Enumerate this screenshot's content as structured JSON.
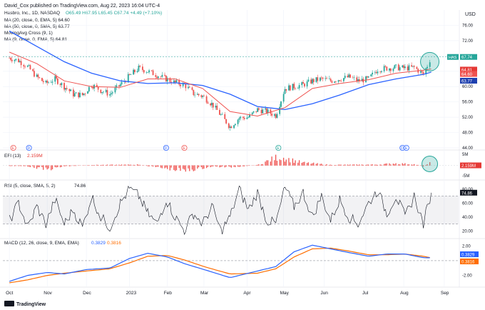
{
  "header": {
    "publisher": "David_Cox published on TradingView.com, Aug 22, 2023 16:04 UTC-4",
    "currency": "USD",
    "logo_text": "TradingView"
  },
  "chart_data": [
    {
      "type": "candlestick",
      "panel": "price",
      "title": "Hasbro, Inc., 1D, NASDAQ",
      "ohlc_text": "O65.49 H67.95 L65.45 C67.74 +4.49 (+7.10%)",
      "indicators_legend": [
        "MA (20, close, 0, EMA, 5) 64.60",
        "MA (50, close, 0, SMA, 5) 63.77",
        "MovingAvg Cross (9, 1)",
        "MA (9, close, 0, EMA, 5) 64.81"
      ],
      "ylim": [
        44,
        80
      ],
      "yticks": [
        "76.00",
        "72.00",
        "68.00",
        "64.00",
        "60.00",
        "56.00",
        "52.00",
        "48.00",
        "44.00"
      ],
      "price_labels": [
        {
          "text": "HAS",
          "color": "#26a69a"
        },
        {
          "text": "67.74",
          "color": "#26a69a"
        },
        {
          "text": "64.81",
          "color": "#e53935"
        },
        {
          "text": "64.60",
          "color": "#ef5350"
        },
        {
          "text": "63.77",
          "color": "#1e40af"
        }
      ],
      "last_price": 67.74,
      "colors": {
        "up": "#26a69a",
        "down": "#ef5350",
        "ema20": "#ef5350",
        "sma50": "#2962ff",
        "ema9": "#e53935"
      },
      "events": [
        {
          "date": "2022-10-06",
          "marker": "E",
          "color": "#ef5350"
        },
        {
          "date": "2022-10-18",
          "marker": "D",
          "color": "#2962ff"
        },
        {
          "date": "2023-01-31",
          "marker": "D",
          "color": "#2962ff"
        },
        {
          "date": "2023-02-14",
          "marker": "E",
          "color": "#ef5350"
        },
        {
          "date": "2023-04-27",
          "marker": "E",
          "color": "#26a69a"
        },
        {
          "date": "2023-07-31",
          "marker": "D",
          "color": "#2962ff"
        },
        {
          "date": "2023-08-03",
          "marker": "E",
          "color": "#2962ff"
        }
      ],
      "series": [
        {
          "name": "HAS close",
          "points": [
            [
              "2022-10-03",
              67.5
            ],
            [
              "2022-10-10",
              66.8
            ],
            [
              "2022-10-17",
              65.2
            ],
            [
              "2022-10-24",
              62.5
            ],
            [
              "2022-10-31",
              60.8
            ],
            [
              "2022-11-07",
              62.0
            ],
            [
              "2022-11-14",
              60.0
            ],
            [
              "2022-11-21",
              58.0
            ],
            [
              "2022-11-28",
              57.8
            ],
            [
              "2022-12-05",
              60.5
            ],
            [
              "2022-12-12",
              59.0
            ],
            [
              "2022-12-19",
              58.0
            ],
            [
              "2022-12-27",
              60.5
            ],
            [
              "2023-01-03",
              62.8
            ],
            [
              "2023-01-10",
              64.8
            ],
            [
              "2023-01-17",
              64.0
            ],
            [
              "2023-01-24",
              63.0
            ],
            [
              "2023-01-31",
              62.0
            ],
            [
              "2023-02-07",
              61.0
            ],
            [
              "2023-02-14",
              60.5
            ],
            [
              "2023-02-21",
              58.2
            ],
            [
              "2023-02-28",
              57.5
            ],
            [
              "2023-03-07",
              55.5
            ],
            [
              "2023-03-14",
              52.5
            ],
            [
              "2023-03-21",
              49.5
            ],
            [
              "2023-03-28",
              51.8
            ],
            [
              "2023-04-04",
              52.0
            ],
            [
              "2023-04-11",
              54.0
            ],
            [
              "2023-04-18",
              53.5
            ],
            [
              "2023-04-25",
              52.5
            ],
            [
              "2023-05-02",
              59.5
            ],
            [
              "2023-05-09",
              60.0
            ],
            [
              "2023-05-16",
              60.5
            ],
            [
              "2023-05-23",
              61.5
            ],
            [
              "2023-05-30",
              62.0
            ],
            [
              "2023-06-06",
              61.5
            ],
            [
              "2023-06-13",
              62.0
            ],
            [
              "2023-06-20",
              62.5
            ],
            [
              "2023-06-27",
              61.5
            ],
            [
              "2023-07-05",
              62.0
            ],
            [
              "2023-07-12",
              64.5
            ],
            [
              "2023-07-19",
              64.8
            ],
            [
              "2023-07-26",
              65.0
            ],
            [
              "2023-08-02",
              64.8
            ],
            [
              "2023-08-09",
              65.0
            ],
            [
              "2023-08-16",
              63.2
            ],
            [
              "2023-08-22",
              67.74
            ]
          ]
        },
        {
          "name": "MA 20 EMA",
          "points": [
            [
              "2022-10-03",
              69.0
            ],
            [
              "2022-10-24",
              66.0
            ],
            [
              "2022-11-14",
              61.5
            ],
            [
              "2022-12-05",
              60.0
            ],
            [
              "2022-12-27",
              59.8
            ],
            [
              "2023-01-17",
              62.0
            ],
            [
              "2023-02-07",
              62.0
            ],
            [
              "2023-02-28",
              59.5
            ],
            [
              "2023-03-21",
              53.5
            ],
            [
              "2023-04-11",
              52.3
            ],
            [
              "2023-05-02",
              54.5
            ],
            [
              "2023-05-23",
              59.5
            ],
            [
              "2023-06-13",
              60.8
            ],
            [
              "2023-07-05",
              61.8
            ],
            [
              "2023-07-26",
              63.5
            ],
            [
              "2023-08-16",
              64.3
            ],
            [
              "2023-08-22",
              64.6
            ]
          ]
        },
        {
          "name": "MA 50 SMA",
          "points": [
            [
              "2022-10-03",
              74.5
            ],
            [
              "2022-10-24",
              70.5
            ],
            [
              "2022-11-14",
              66.5
            ],
            [
              "2022-12-05",
              63.5
            ],
            [
              "2022-12-27",
              61.5
            ],
            [
              "2023-01-17",
              60.8
            ],
            [
              "2023-02-07",
              61.0
            ],
            [
              "2023-02-28",
              60.3
            ],
            [
              "2023-03-21",
              58.0
            ],
            [
              "2023-04-11",
              54.8
            ],
            [
              "2023-05-02",
              54.0
            ],
            [
              "2023-05-23",
              55.5
            ],
            [
              "2023-06-13",
              57.8
            ],
            [
              "2023-07-05",
              60.5
            ],
            [
              "2023-07-26",
              62.0
            ],
            [
              "2023-08-16",
              63.2
            ],
            [
              "2023-08-22",
              63.77
            ]
          ]
        }
      ]
    },
    {
      "type": "bar",
      "panel": "efi",
      "title": "EFI (13)",
      "last_value_label": "2.159M",
      "ylim": [
        -8,
        8
      ],
      "yticks": [
        "5M",
        "-5M"
      ],
      "values_note": "histogram around zero, large spike at end of April 2023 and at the last bar",
      "series": [
        {
          "name": "EFI",
          "points": [
            [
              "2022-10-03",
              -0.3
            ],
            [
              "2022-10-17",
              -0.5
            ],
            [
              "2022-11-01",
              -3.0
            ],
            [
              "2022-11-14",
              -0.6
            ],
            [
              "2022-12-05",
              0.3
            ],
            [
              "2023-01-03",
              0.5
            ],
            [
              "2023-01-10",
              0.6
            ],
            [
              "2023-02-14",
              -4.0
            ],
            [
              "2023-03-07",
              -0.8
            ],
            [
              "2023-03-21",
              -1.2
            ],
            [
              "2023-04-11",
              0.3
            ],
            [
              "2023-04-27",
              6.5
            ],
            [
              "2023-05-02",
              5.5
            ],
            [
              "2023-05-09",
              3.5
            ],
            [
              "2023-05-16",
              2.0
            ],
            [
              "2023-06-06",
              0.4
            ],
            [
              "2023-07-12",
              0.6
            ],
            [
              "2023-07-26",
              1.5
            ],
            [
              "2023-08-09",
              0.8
            ],
            [
              "2023-08-16",
              -0.5
            ],
            [
              "2023-08-22",
              2.159
            ]
          ]
        }
      ]
    },
    {
      "type": "line",
      "panel": "rsi",
      "title": "RSI (5, close, SMA, 5, 2)",
      "last_value_label": "74.86",
      "ylim": [
        10,
        90
      ],
      "band": [
        30,
        70
      ],
      "yticks": [
        "80.00",
        "60.00",
        "40.00",
        "20.00"
      ],
      "series": [
        {
          "name": "RSI",
          "points": [
            [
              "2022-10-03",
              35
            ],
            [
              "2022-10-10",
              60
            ],
            [
              "2022-10-17",
              25
            ],
            [
              "2022-10-24",
              55
            ],
            [
              "2022-10-31",
              30
            ],
            [
              "2022-11-07",
              65
            ],
            [
              "2022-11-14",
              30
            ],
            [
              "2022-11-21",
              50
            ],
            [
              "2022-11-28",
              25
            ],
            [
              "2022-12-05",
              70
            ],
            [
              "2022-12-12",
              40
            ],
            [
              "2022-12-19",
              25
            ],
            [
              "2022-12-27",
              60
            ],
            [
              "2023-01-03",
              80
            ],
            [
              "2023-01-10",
              70
            ],
            [
              "2023-01-17",
              45
            ],
            [
              "2023-01-24",
              30
            ],
            [
              "2023-01-31",
              65
            ],
            [
              "2023-02-07",
              40
            ],
            [
              "2023-02-14",
              20
            ],
            [
              "2023-02-21",
              45
            ],
            [
              "2023-02-28",
              30
            ],
            [
              "2023-03-07",
              55
            ],
            [
              "2023-03-14",
              20
            ],
            [
              "2023-03-21",
              40
            ],
            [
              "2023-03-28",
              80
            ],
            [
              "2023-04-04",
              50
            ],
            [
              "2023-04-11",
              75
            ],
            [
              "2023-04-18",
              35
            ],
            [
              "2023-04-25",
              30
            ],
            [
              "2023-05-02",
              82
            ],
            [
              "2023-05-09",
              55
            ],
            [
              "2023-05-16",
              75
            ],
            [
              "2023-05-23",
              40
            ],
            [
              "2023-05-30",
              70
            ],
            [
              "2023-06-06",
              35
            ],
            [
              "2023-06-13",
              65
            ],
            [
              "2023-06-20",
              40
            ],
            [
              "2023-06-27",
              30
            ],
            [
              "2023-07-05",
              60
            ],
            [
              "2023-07-12",
              78
            ],
            [
              "2023-07-19",
              45
            ],
            [
              "2023-07-26",
              70
            ],
            [
              "2023-08-02",
              40
            ],
            [
              "2023-08-09",
              70
            ],
            [
              "2023-08-16",
              30
            ],
            [
              "2023-08-22",
              74.86
            ]
          ]
        }
      ]
    },
    {
      "type": "line",
      "panel": "macd",
      "title": "MACD (12, 26, close, 9, EMA, EMA)",
      "last_value_labels": [
        {
          "text": "0.3829",
          "color": "#2962ff"
        },
        {
          "text": "0.3816",
          "color": "#ff6d00"
        }
      ],
      "ylim": [
        -3.2,
        2.8
      ],
      "yticks": [
        "2.00",
        "0.00",
        "-2.00"
      ],
      "series": [
        {
          "name": "MACD",
          "color": "#2962ff",
          "points": [
            [
              "2022-10-03",
              -2.8
            ],
            [
              "2022-10-17",
              -2.0
            ],
            [
              "2022-11-01",
              -1.6
            ],
            [
              "2022-11-14",
              -1.8
            ],
            [
              "2022-12-01",
              -1.2
            ],
            [
              "2022-12-19",
              -1.0
            ],
            [
              "2023-01-03",
              0.3
            ],
            [
              "2023-01-17",
              1.0
            ],
            [
              "2023-02-01",
              0.5
            ],
            [
              "2023-02-14",
              -0.4
            ],
            [
              "2023-03-01",
              -1.2
            ],
            [
              "2023-03-21",
              -2.3
            ],
            [
              "2023-04-11",
              -1.4
            ],
            [
              "2023-04-25",
              -0.8
            ],
            [
              "2023-05-09",
              1.2
            ],
            [
              "2023-05-23",
              2.1
            ],
            [
              "2023-06-06",
              1.6
            ],
            [
              "2023-06-20",
              1.1
            ],
            [
              "2023-07-05",
              0.6
            ],
            [
              "2023-07-19",
              0.9
            ],
            [
              "2023-08-02",
              0.9
            ],
            [
              "2023-08-16",
              0.4
            ],
            [
              "2023-08-22",
              0.3829
            ]
          ]
        },
        {
          "name": "Signal",
          "color": "#ff6d00",
          "points": [
            [
              "2022-10-03",
              -3.0
            ],
            [
              "2022-10-17",
              -2.6
            ],
            [
              "2022-11-01",
              -2.0
            ],
            [
              "2022-11-14",
              -1.7
            ],
            [
              "2022-12-01",
              -1.4
            ],
            [
              "2022-12-19",
              -1.1
            ],
            [
              "2023-01-03",
              -0.3
            ],
            [
              "2023-01-17",
              0.6
            ],
            [
              "2023-02-01",
              0.7
            ],
            [
              "2023-02-14",
              0.1
            ],
            [
              "2023-03-01",
              -0.8
            ],
            [
              "2023-03-21",
              -1.8
            ],
            [
              "2023-04-11",
              -1.7
            ],
            [
              "2023-04-25",
              -1.1
            ],
            [
              "2023-05-09",
              0.5
            ],
            [
              "2023-05-23",
              1.6
            ],
            [
              "2023-06-06",
              1.7
            ],
            [
              "2023-06-20",
              1.3
            ],
            [
              "2023-07-05",
              0.8
            ],
            [
              "2023-07-19",
              0.8
            ],
            [
              "2023-08-02",
              0.9
            ],
            [
              "2023-08-16",
              0.6
            ],
            [
              "2023-08-22",
              0.3816
            ]
          ]
        }
      ]
    }
  ],
  "x_axis": {
    "labels": [
      {
        "date": "2022-10-03",
        "text": "Oct"
      },
      {
        "date": "2022-11-01",
        "text": "Nov"
      },
      {
        "date": "2022-12-01",
        "text": "Dec"
      },
      {
        "date": "2023-01-03",
        "text": "2023"
      },
      {
        "date": "2023-02-01",
        "text": "Feb"
      },
      {
        "date": "2023-03-01",
        "text": "Mar"
      },
      {
        "date": "2023-04-03",
        "text": "Apr"
      },
      {
        "date": "2023-05-01",
        "text": "May"
      },
      {
        "date": "2023-06-01",
        "text": "Jun"
      },
      {
        "date": "2023-07-03",
        "text": "Jul"
      },
      {
        "date": "2023-08-01",
        "text": "Aug"
      },
      {
        "date": "2023-09-01",
        "text": "Sep"
      }
    ],
    "range": [
      "2022-09-28",
      "2023-09-12"
    ]
  },
  "highlight": {
    "date": "2023-08-22",
    "color": "#26a69a"
  }
}
